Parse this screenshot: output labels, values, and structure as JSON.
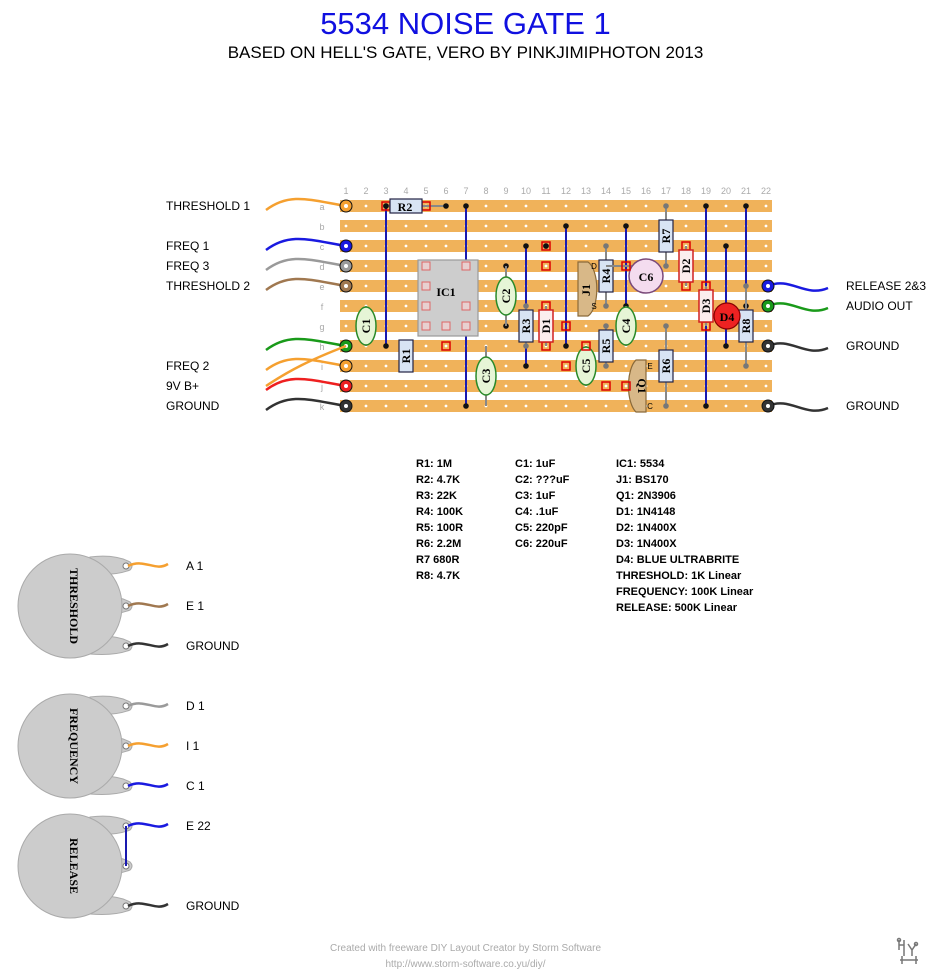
{
  "title": "5534 NOISE GATE 1",
  "subtitle": "BASED ON HELL'S GATE, VERO BY PINKJIMIPHOTON 2013",
  "board": {
    "columns": [
      "1",
      "2",
      "3",
      "4",
      "5",
      "6",
      "7",
      "8",
      "9",
      "10",
      "11",
      "12",
      "13",
      "14",
      "15",
      "16",
      "17",
      "18",
      "19",
      "20",
      "21",
      "22"
    ],
    "rows": [
      "a",
      "b",
      "c",
      "d",
      "e",
      "f",
      "g",
      "h",
      "i",
      "j",
      "k"
    ],
    "strip_color": "#f0b25a"
  },
  "left_wires": [
    {
      "label": "THRESHOLD 1",
      "color": "#f5a030"
    },
    {
      "label": "FREQ 1",
      "color": "#1a1ae0"
    },
    {
      "label": "FREQ 3",
      "color": "#9a9a9a"
    },
    {
      "label": "THRESHOLD 2",
      "color": "#a07850"
    },
    {
      "label": "",
      "color": "#1a9a1a"
    },
    {
      "label": "FREQ 2",
      "color": "#f5a030"
    },
    {
      "label": "9V B+",
      "color": "#ee2020"
    },
    {
      "label": "GROUND",
      "color": "#333333"
    }
  ],
  "right_wires": [
    {
      "label": "RELEASE 2&3",
      "color": "#1a1ae0"
    },
    {
      "label": "AUDIO OUT",
      "color": "#1a9a1a"
    },
    {
      "label": "GROUND",
      "color": "#333333"
    },
    {
      "label": "GROUND",
      "color": "#333333"
    }
  ],
  "components": {
    "resistors": [
      "R1",
      "R2",
      "R3",
      "R4",
      "R5",
      "R6",
      "R7",
      "R8"
    ],
    "capacitors": [
      "C1",
      "C2",
      "C3",
      "C4",
      "C5",
      "C6"
    ],
    "ic": "IC1",
    "jfet": "J1",
    "transistor": "Q1",
    "diodes": [
      "D1",
      "D2",
      "D3"
    ],
    "led": "D4",
    "pin_letters": {
      "j1_top": "D",
      "j1_bottom": "S",
      "q1_top": "E",
      "q1_bottom": "C"
    }
  },
  "bom": {
    "col1": [
      "R1: 1M",
      "R2: 4.7K",
      "R3: 22K",
      "R4: 100K",
      "R5: 100R",
      "R6: 2.2M",
      "R7 680R",
      "R8: 4.7K"
    ],
    "col2": [
      "C1: 1uF",
      "C2: ???uF",
      "C3: 1uF",
      "C4: .1uF",
      "C5: 220pF",
      "C6: 220uF"
    ],
    "col3": [
      "IC1: 5534",
      "J1: BS170",
      "Q1: 2N3906",
      "D1: 1N4148",
      "D2: 1N400X",
      "D3: 1N400X",
      "D4: BLUE ULTRABRITE",
      "THRESHOLD: 1K Linear",
      "FREQUENCY: 100K Linear",
      "RELEASE: 500K Linear"
    ]
  },
  "pots": [
    {
      "name": "THRESHOLD",
      "lugs": [
        {
          "label": "A 1",
          "color": "#f5a030"
        },
        {
          "label": "E 1",
          "color": "#a07850"
        },
        {
          "label": "GROUND",
          "color": "#333333"
        }
      ]
    },
    {
      "name": "FREQUENCY",
      "lugs": [
        {
          "label": "D 1",
          "color": "#9a9a9a"
        },
        {
          "label": "I 1",
          "color": "#f5a030"
        },
        {
          "label": "C 1",
          "color": "#1a1ae0"
        }
      ]
    },
    {
      "name": "RELEASE",
      "lugs": [
        {
          "label": "E 22",
          "color": "#1a1ae0"
        },
        {
          "label": "",
          "color": ""
        },
        {
          "label": "GROUND",
          "color": "#333333"
        }
      ]
    }
  ],
  "footer": {
    "line1": "Created with freeware DIY Layout Creator by Storm Software",
    "line2": "http://www.storm-software.co.yu/diy/"
  }
}
